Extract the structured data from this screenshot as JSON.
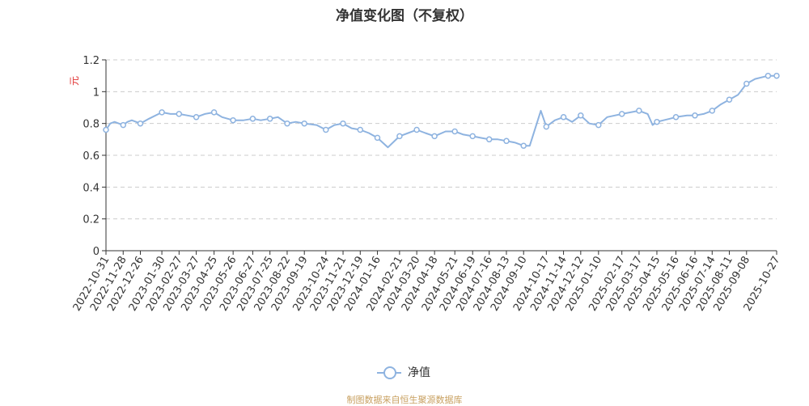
{
  "title": "净值变化图（不复权）",
  "source": "制图数据来自恒生聚源数据库",
  "legend": {
    "label": "净值"
  },
  "colors": {
    "series": "#8eb3e0",
    "ylabel": "#e03030",
    "grid": "#cccccc",
    "axis": "#333333"
  },
  "chart_data": {
    "type": "line",
    "title": "净值变化图（不复权）",
    "ylabel": "元",
    "xlabel": "",
    "ylim": [
      0,
      1.2
    ],
    "y_ticks": [
      0,
      0.2,
      0.4,
      0.6,
      0.8,
      1,
      1.2
    ],
    "y_tick_labels": [
      "0",
      "0.2",
      "0.4",
      "0.6",
      "0.8",
      "1",
      "1.2"
    ],
    "x_tick_labels": [
      "2022-10-31",
      "2022-11-28",
      "2022-12-26",
      "2023-01-30",
      "2023-02-27",
      "2023-03-27",
      "2023-04-25",
      "2023-05-26",
      "2023-06-27",
      "2023-07-25",
      "2023-08-22",
      "2023-09-19",
      "2023-10-24",
      "2023-11-21",
      "2023-12-19",
      "2024-01-16",
      "2024-02-21",
      "2024-03-20",
      "2024-04-18",
      "2024-05-21",
      "2024-06-19",
      "2024-07-16",
      "2024-08-13",
      "2024-09-10",
      "2024-10-17",
      "2024-11-14",
      "2024-12-12",
      "2025-01-10",
      "2025-02-17",
      "2025-03-17",
      "2025-04-15",
      "2025-05-16",
      "2025-06-16",
      "2025-07-14",
      "2025-08-11",
      "2025-09-08",
      "2025-10-27"
    ],
    "grid": true,
    "legend_position": "bottom-center",
    "series": [
      {
        "name": "净值",
        "x": [
          "2022-10-31",
          "2022-11-07",
          "2022-11-14",
          "2022-11-21",
          "2022-11-28",
          "2022-12-05",
          "2022-12-12",
          "2022-12-19",
          "2022-12-26",
          "2023-01-09",
          "2023-01-30",
          "2023-02-13",
          "2023-02-27",
          "2023-03-13",
          "2023-03-27",
          "2023-04-10",
          "2023-04-25",
          "2023-05-08",
          "2023-05-26",
          "2023-06-12",
          "2023-06-27",
          "2023-07-10",
          "2023-07-25",
          "2023-08-07",
          "2023-08-22",
          "2023-09-05",
          "2023-09-19",
          "2023-10-09",
          "2023-10-24",
          "2023-11-07",
          "2023-11-21",
          "2023-12-05",
          "2023-12-19",
          "2024-01-02",
          "2024-01-16",
          "2024-02-02",
          "2024-02-21",
          "2024-03-06",
          "2024-03-20",
          "2024-04-03",
          "2024-04-18",
          "2024-05-06",
          "2024-05-21",
          "2024-06-04",
          "2024-06-19",
          "2024-07-02",
          "2024-07-16",
          "2024-07-30",
          "2024-08-13",
          "2024-08-27",
          "2024-09-10",
          "2024-09-20",
          "2024-10-08",
          "2024-10-17",
          "2024-10-31",
          "2024-11-14",
          "2024-11-28",
          "2024-12-12",
          "2024-12-26",
          "2025-01-10",
          "2025-01-24",
          "2025-02-17",
          "2025-03-03",
          "2025-03-17",
          "2025-03-31",
          "2025-04-08",
          "2025-04-15",
          "2025-05-06",
          "2025-05-16",
          "2025-06-03",
          "2025-06-16",
          "2025-06-30",
          "2025-07-14",
          "2025-07-28",
          "2025-08-11",
          "2025-08-25",
          "2025-09-08",
          "2025-09-22",
          "2025-10-13",
          "2025-10-27"
        ],
        "values": [
          0.76,
          0.8,
          0.81,
          0.8,
          0.79,
          0.81,
          0.82,
          0.81,
          0.8,
          0.83,
          0.87,
          0.86,
          0.86,
          0.85,
          0.84,
          0.86,
          0.87,
          0.84,
          0.82,
          0.82,
          0.83,
          0.82,
          0.83,
          0.84,
          0.8,
          0.81,
          0.8,
          0.79,
          0.76,
          0.79,
          0.8,
          0.77,
          0.76,
          0.74,
          0.71,
          0.65,
          0.72,
          0.74,
          0.76,
          0.74,
          0.72,
          0.75,
          0.75,
          0.73,
          0.72,
          0.71,
          0.7,
          0.7,
          0.69,
          0.68,
          0.66,
          0.66,
          0.88,
          0.78,
          0.82,
          0.84,
          0.81,
          0.85,
          0.8,
          0.79,
          0.84,
          0.86,
          0.87,
          0.88,
          0.86,
          0.79,
          0.81,
          0.83,
          0.84,
          0.85,
          0.85,
          0.86,
          0.88,
          0.92,
          0.95,
          0.98,
          1.05,
          1.08,
          1.1,
          1.1
        ]
      }
    ],
    "markers_at": [
      "2022-10-31",
      "2022-11-28",
      "2022-12-26",
      "2023-01-30",
      "2023-02-27",
      "2023-03-27",
      "2023-04-25",
      "2023-05-26",
      "2023-06-27",
      "2023-07-25",
      "2023-08-22",
      "2023-09-19",
      "2023-10-24",
      "2023-11-21",
      "2023-12-19",
      "2024-01-16",
      "2024-02-21",
      "2024-03-20",
      "2024-04-18",
      "2024-05-21",
      "2024-06-19",
      "2024-07-16",
      "2024-08-13",
      "2024-09-10",
      "2024-10-17",
      "2024-11-14",
      "2024-12-12",
      "2025-01-10",
      "2025-02-17",
      "2025-03-17",
      "2025-04-15",
      "2025-05-16",
      "2025-06-16",
      "2025-07-14",
      "2025-08-11",
      "2025-09-08",
      "2025-10-13",
      "2025-10-27"
    ]
  }
}
